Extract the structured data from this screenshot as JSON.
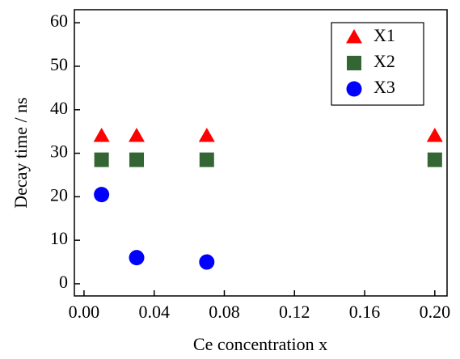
{
  "chart_data": {
    "type": "scatter",
    "xlabel": "Ce concentration x",
    "ylabel": "Decay time / ns",
    "xlim": [
      -0.0055,
      0.207
    ],
    "ylim": [
      -2.8,
      63
    ],
    "xticks": [
      {
        "value": 0,
        "label": "0.00"
      },
      {
        "value": 0.04,
        "label": "0.04"
      },
      {
        "value": 0.08,
        "label": "0.08"
      },
      {
        "value": 0.12,
        "label": "0.12"
      },
      {
        "value": 0.16,
        "label": "0.16"
      },
      {
        "value": 0.2,
        "label": "0.20"
      }
    ],
    "yticks": [
      0,
      10,
      20,
      30,
      40,
      50,
      60
    ],
    "legend": "upper right",
    "series": [
      {
        "name": "X1",
        "color": "#ff0000",
        "marker": "triangle",
        "x": [
          0.01,
          0.03,
          0.07,
          0.2
        ],
        "values": [
          34,
          34,
          34,
          34
        ]
      },
      {
        "name": "X2",
        "color": "#336633",
        "marker": "square",
        "x": [
          0.01,
          0.03,
          0.07,
          0.2
        ],
        "values": [
          28.5,
          28.5,
          28.5,
          28.5
        ]
      },
      {
        "name": "X3",
        "color": "#0000ff",
        "marker": "circle",
        "x": [
          0.01,
          0.03,
          0.07
        ],
        "values": [
          20.5,
          6,
          5
        ]
      }
    ]
  }
}
